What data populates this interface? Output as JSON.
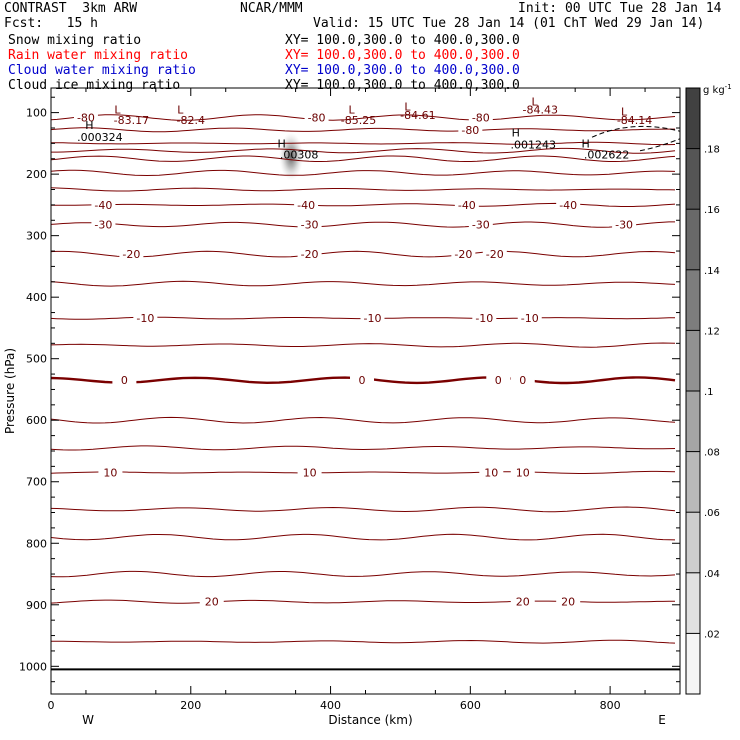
{
  "header": {
    "title_left": "CONTRAST  3km ARW",
    "title_center": "NCAR/MMM",
    "init": "Init: 00 UTC Tue 28 Jan 14",
    "fcst": "Fcst:   15 h",
    "valid": "Valid: 15 UTC Tue 28 Jan 14 (01 ChT Wed 29 Jan 14)",
    "fields": [
      {
        "name": "Snow mixing ratio",
        "xy": "XY= 100.0,300.0 to 400.0,300.0",
        "color": "#000000"
      },
      {
        "name": "Rain water mixing ratio",
        "xy": "XY= 100.0,300.0 to 400.0,300.0",
        "color": "#ff0000"
      },
      {
        "name": "Cloud water mixing ratio",
        "xy": "XY= 100.0,300.0 to 400.0,300.0",
        "color": "#0000cc"
      },
      {
        "name": "Cloud ice mixing ratio",
        "xy": "XY= 100.0,300.0 to 400.0,300.0",
        "color": "#000000"
      }
    ]
  },
  "colors": {
    "contour": "#7a0000",
    "zero_contour": "#7a0000",
    "accent_red": "#ff0000",
    "accent_blue": "#0000cc"
  },
  "chart_data": {
    "type": "heatmap",
    "subtype": "vertical cross-section with temperature contours",
    "xlabel": "Distance (km)",
    "ylabel": "Pressure (hPa)",
    "xlim": [
      0,
      900
    ],
    "ylim": [
      1045,
      60
    ],
    "x_ticks": [
      0,
      200,
      400,
      600,
      800
    ],
    "y_ticks": [
      100,
      200,
      300,
      400,
      500,
      600,
      700,
      800,
      900,
      1000
    ],
    "x_end_labels": {
      "left": "W",
      "right": "E"
    },
    "colorbar": {
      "unit": "g kg",
      "unit_exp": "-1",
      "min": 0,
      "max": 0.2,
      "labels": [
        ".02",
        ".04",
        ".06",
        ".08",
        ".1",
        ".12",
        ".14",
        ".16",
        ".18"
      ],
      "label_values": [
        0.02,
        0.04,
        0.06,
        0.08,
        0.1,
        0.12,
        0.14,
        0.16,
        0.18
      ]
    },
    "temperature_contours": [
      {
        "p": 108,
        "bold": false,
        "labels": [
          {
            "x": 50,
            "text": "-80"
          },
          {
            "x": 380,
            "text": "-80"
          },
          {
            "x": 615,
            "text": "-80"
          }
        ]
      },
      {
        "p": 128,
        "bold": false,
        "labels": [
          {
            "x": 600,
            "text": "-80"
          }
        ]
      },
      {
        "p": 150,
        "bold": false,
        "labels": []
      },
      {
        "p": 162,
        "bold": false,
        "labels": []
      },
      {
        "p": 175,
        "bold": false,
        "labels": []
      },
      {
        "p": 198,
        "bold": false,
        "labels": []
      },
      {
        "p": 225,
        "bold": false,
        "labels": []
      },
      {
        "p": 250,
        "bold": false,
        "labels": [
          {
            "x": 75,
            "text": "-40"
          },
          {
            "x": 365,
            "text": "-40"
          },
          {
            "x": 595,
            "text": "-40"
          },
          {
            "x": 740,
            "text": "-40"
          }
        ]
      },
      {
        "p": 282,
        "bold": false,
        "labels": [
          {
            "x": 75,
            "text": "-30"
          },
          {
            "x": 370,
            "text": "-30"
          },
          {
            "x": 615,
            "text": "-30"
          },
          {
            "x": 820,
            "text": "-30"
          }
        ]
      },
      {
        "p": 330,
        "bold": false,
        "labels": [
          {
            "x": 115,
            "text": "-20"
          },
          {
            "x": 370,
            "text": "-20"
          },
          {
            "x": 590,
            "text": "-20"
          },
          {
            "x": 635,
            "text": "-20"
          }
        ]
      },
      {
        "p": 378,
        "bold": false,
        "labels": []
      },
      {
        "p": 434,
        "bold": false,
        "labels": [
          {
            "x": 135,
            "text": "-10"
          },
          {
            "x": 460,
            "text": "-10"
          },
          {
            "x": 620,
            "text": "-10"
          },
          {
            "x": 685,
            "text": "-10"
          }
        ]
      },
      {
        "p": 478,
        "bold": false,
        "labels": []
      },
      {
        "p": 535,
        "bold": true,
        "labels": [
          {
            "x": 105,
            "text": "0"
          },
          {
            "x": 445,
            "text": "0"
          },
          {
            "x": 640,
            "text": "0"
          },
          {
            "x": 675,
            "text": "0"
          }
        ]
      },
      {
        "p": 600,
        "bold": false,
        "labels": []
      },
      {
        "p": 645,
        "bold": false,
        "labels": []
      },
      {
        "p": 685,
        "bold": false,
        "labels": [
          {
            "x": 85,
            "text": "10"
          },
          {
            "x": 370,
            "text": "10"
          },
          {
            "x": 630,
            "text": "10"
          },
          {
            "x": 675,
            "text": "10"
          }
        ]
      },
      {
        "p": 745,
        "bold": false,
        "labels": []
      },
      {
        "p": 790,
        "bold": false,
        "labels": []
      },
      {
        "p": 850,
        "bold": false,
        "labels": []
      },
      {
        "p": 895,
        "bold": false,
        "labels": [
          {
            "x": 230,
            "text": "20"
          },
          {
            "x": 675,
            "text": "20"
          },
          {
            "x": 740,
            "text": "20"
          }
        ]
      },
      {
        "p": 960,
        "bold": false,
        "labels": []
      }
    ],
    "extrema_labels": [
      {
        "x": 95,
        "p": 95,
        "text": "L"
      },
      {
        "x": 115,
        "p": 112,
        "text": "-83.17"
      },
      {
        "x": 185,
        "p": 95,
        "text": "L"
      },
      {
        "x": 200,
        "p": 112,
        "text": "-82.4"
      },
      {
        "x": 430,
        "p": 95,
        "text": "L"
      },
      {
        "x": 440,
        "p": 112,
        "text": "-85.25"
      },
      {
        "x": 510,
        "p": 90,
        "text": "L"
      },
      {
        "x": 525,
        "p": 104,
        "text": "-84.61"
      },
      {
        "x": 692,
        "p": 82,
        "text": "L"
      },
      {
        "x": 700,
        "p": 95,
        "text": "-84.43"
      },
      {
        "x": 820,
        "p": 98,
        "text": "L"
      },
      {
        "x": 835,
        "p": 112,
        "text": "-84.14"
      },
      {
        "x": 55,
        "p": 120,
        "text": "H"
      },
      {
        "x": 70,
        "p": 140,
        "text": ".000324"
      },
      {
        "x": 330,
        "p": 150,
        "text": "H"
      },
      {
        "x": 355,
        "p": 168,
        "text": ".00308"
      },
      {
        "x": 665,
        "p": 132,
        "text": "H"
      },
      {
        "x": 690,
        "p": 152,
        "text": ".001243"
      },
      {
        "x": 765,
        "p": 150,
        "text": "H"
      },
      {
        "x": 795,
        "p": 168,
        "text": ".002622"
      }
    ]
  }
}
